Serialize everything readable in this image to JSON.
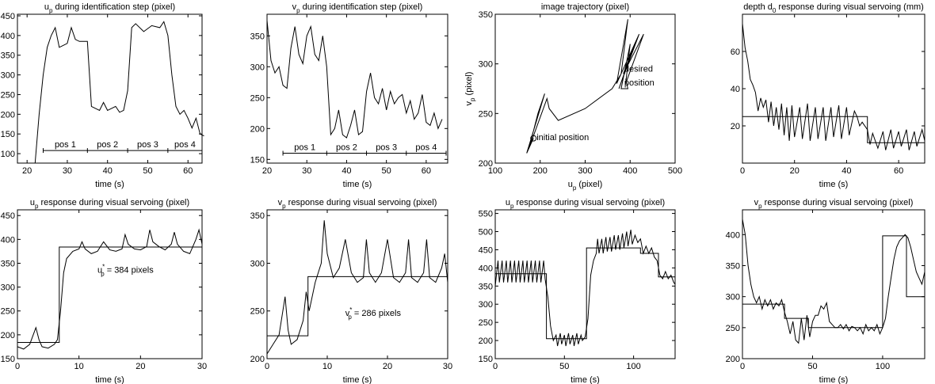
{
  "chart_data": [
    {
      "type": "line",
      "title": [
        "u",
        "p",
        " during identification step (pixel)"
      ],
      "xlabel": "time (s)",
      "xlim": [
        17.6,
        63.5
      ],
      "xticks": [
        20,
        30,
        40,
        50,
        60
      ],
      "ylim": [
        76,
        454
      ],
      "yticks": [
        100,
        150,
        200,
        250,
        300,
        350,
        400,
        450
      ],
      "segment_edges": [
        24,
        35,
        45,
        55,
        65
      ],
      "segment_labels": [
        "pos 1",
        "pos 2",
        "pos 3",
        "pos 4"
      ],
      "series": [
        {
          "color": "#000",
          "x": [
            22,
            23,
            24,
            25,
            26,
            27,
            28,
            29,
            30,
            31,
            32,
            33,
            35,
            36,
            38,
            39,
            40,
            41,
            42,
            43,
            44,
            45,
            46,
            47,
            49,
            51,
            53,
            54,
            55,
            56,
            57,
            58,
            59,
            60,
            61,
            62,
            63,
            64
          ],
          "values": [
            76,
            200,
            300,
            370,
            400,
            420,
            370,
            375,
            380,
            420,
            390,
            385,
            385,
            220,
            210,
            230,
            210,
            215,
            220,
            205,
            210,
            260,
            420,
            430,
            410,
            425,
            420,
            435,
            400,
            300,
            220,
            200,
            210,
            190,
            165,
            190,
            150,
            145
          ]
        }
      ]
    },
    {
      "type": "line",
      "title": [
        "v",
        "p",
        " during identification step (pixel)"
      ],
      "xlabel": "time (s)",
      "xlim": [
        20,
        65.4
      ],
      "xticks": [
        20,
        30,
        40,
        50,
        60
      ],
      "ylim": [
        144,
        385
      ],
      "yticks": [
        150,
        200,
        250,
        300,
        350
      ],
      "segment_edges": [
        24,
        35,
        45,
        55,
        65
      ],
      "segment_labels": [
        "pos 1",
        "pos 2",
        "pos 3",
        "pos 4"
      ],
      "series": [
        {
          "color": "#000",
          "x": [
            20,
            21,
            22,
            23,
            24,
            25,
            26,
            27,
            28,
            29,
            30,
            31,
            32,
            33,
            34,
            35,
            36,
            37,
            38,
            39,
            40,
            41,
            42,
            43,
            44,
            45,
            46,
            47,
            48,
            49,
            50,
            51,
            52,
            53,
            54,
            55,
            56,
            57,
            58,
            59,
            60,
            61,
            62,
            63,
            64
          ],
          "values": [
            375,
            310,
            290,
            300,
            270,
            265,
            330,
            365,
            320,
            305,
            350,
            365,
            320,
            310,
            350,
            300,
            190,
            200,
            230,
            190,
            185,
            205,
            230,
            190,
            195,
            260,
            290,
            250,
            240,
            265,
            230,
            260,
            240,
            250,
            255,
            225,
            245,
            215,
            225,
            255,
            210,
            205,
            225,
            200,
            215
          ]
        }
      ]
    },
    {
      "type": "line",
      "title": [
        "image trajectory (pixel)"
      ],
      "xlabel": [
        "u",
        "p",
        " (pixel)"
      ],
      "ylabel": [
        "v",
        "p",
        " (pixel)"
      ],
      "xlim": [
        100,
        500
      ],
      "xticks": [
        100,
        200,
        300,
        400,
        500
      ],
      "ylim": [
        200,
        350
      ],
      "yticks": [
        200,
        250,
        300,
        350
      ],
      "annotations": [
        "initial position",
        "desired",
        "position"
      ],
      "series": [
        {
          "color": "#000",
          "x": [
            185,
            170,
            200,
            210,
            195,
            175,
            215,
            220,
            240,
            300,
            360,
            380,
            395,
            370,
            420,
            375,
            410,
            385,
            430,
            390,
            400,
            380,
            395,
            390
          ],
          "values": [
            225,
            210,
            255,
            270,
            250,
            215,
            265,
            255,
            243,
            255,
            275,
            290,
            345,
            280,
            330,
            275,
            320,
            290,
            330,
            280,
            320,
            275,
            275,
            285
          ]
        }
      ]
    },
    {
      "type": "line",
      "title": [
        "depth d",
        "0",
        " response during visual servoing (mm)"
      ],
      "xlabel": "time (s)",
      "xlim": [
        0,
        70
      ],
      "xticks": [
        0,
        20,
        40,
        60
      ],
      "ylim": [
        0,
        80
      ],
      "yticks": [
        20,
        40,
        60
      ],
      "series": [
        {
          "color": "#000",
          "x": [
            0,
            1,
            2,
            3,
            4,
            5,
            6,
            7,
            8,
            9,
            10,
            11,
            12,
            13,
            14,
            15,
            16,
            17,
            18,
            19,
            20,
            22,
            23,
            25,
            26,
            28,
            29,
            31,
            32,
            34,
            35,
            37,
            38,
            40,
            41,
            43,
            44,
            45,
            46,
            48,
            49,
            50,
            52,
            54,
            55,
            57,
            58,
            60,
            61,
            63,
            64,
            66,
            67,
            69,
            70
          ],
          "values": [
            75,
            62,
            55,
            45,
            42,
            38,
            28,
            35,
            30,
            34,
            22,
            33,
            20,
            30,
            18,
            32,
            15,
            30,
            12,
            31,
            14,
            30,
            13,
            32,
            12,
            30,
            13,
            30,
            12,
            30,
            14,
            31,
            13,
            30,
            15,
            28,
            25,
            20,
            22,
            18,
            10,
            16,
            8,
            17,
            7,
            18,
            8,
            17,
            9,
            18,
            7,
            17,
            9,
            18,
            12
          ]
        },
        {
          "color": "#000",
          "x": [
            0,
            48,
            48,
            70
          ],
          "values": [
            25,
            25,
            11,
            11
          ]
        }
      ]
    },
    {
      "type": "line",
      "title": [
        "u",
        "p",
        " response during visual servoing (pixel)"
      ],
      "xlabel": "time (s)",
      "xlim": [
        0,
        30
      ],
      "xticks": [
        0,
        10,
        20,
        30
      ],
      "ylim": [
        150,
        462
      ],
      "yticks": [
        150,
        200,
        250,
        300,
        350,
        400,
        450
      ],
      "annotation": [
        "u",
        "*",
        "p",
        " = 384 pixels"
      ],
      "series": [
        {
          "color": "#000",
          "x": [
            0,
            1,
            2,
            3,
            3.5,
            4,
            5,
            6,
            6.5,
            7,
            7.5,
            8,
            9,
            10,
            10.5,
            11,
            12,
            13,
            14,
            15,
            16,
            17,
            17.5,
            18,
            19,
            20,
            21,
            21.5,
            22,
            23,
            24,
            25,
            25.5,
            26,
            27,
            28,
            29,
            29.5,
            30
          ],
          "values": [
            175,
            170,
            180,
            215,
            190,
            175,
            172,
            180,
            190,
            250,
            330,
            360,
            375,
            380,
            395,
            380,
            370,
            375,
            395,
            378,
            375,
            380,
            410,
            390,
            380,
            378,
            385,
            420,
            395,
            385,
            378,
            390,
            415,
            390,
            375,
            370,
            400,
            420,
            390
          ]
        },
        {
          "color": "#000",
          "x": [
            0,
            6.8,
            6.8,
            30
          ],
          "values": [
            184,
            184,
            384,
            384
          ]
        }
      ]
    },
    {
      "type": "line",
      "title": [
        "v",
        "p",
        " response during visual servoing (pixel)"
      ],
      "xlabel": "time (s)",
      "xlim": [
        0,
        30
      ],
      "xticks": [
        0,
        10,
        20,
        30
      ],
      "ylim": [
        200,
        356
      ],
      "yticks": [
        200,
        250,
        300,
        350
      ],
      "annotation": [
        "v",
        "*",
        "p",
        " = 286 pixels"
      ],
      "series": [
        {
          "color": "#000",
          "x": [
            0,
            1,
            2,
            3,
            3.5,
            4,
            5,
            6,
            6.5,
            7,
            8,
            9,
            9.5,
            10,
            11,
            12,
            13,
            14,
            15,
            16,
            16.5,
            17,
            18,
            19,
            20,
            21,
            22,
            23,
            23.5,
            24,
            25,
            26,
            26.5,
            27,
            28,
            29,
            29.5,
            30
          ],
          "values": [
            205,
            215,
            225,
            265,
            230,
            215,
            220,
            240,
            270,
            250,
            280,
            300,
            345,
            310,
            285,
            295,
            325,
            290,
            280,
            285,
            325,
            290,
            280,
            290,
            325,
            285,
            280,
            290,
            325,
            285,
            280,
            290,
            325,
            285,
            280,
            295,
            310,
            280
          ]
        },
        {
          "color": "#000",
          "x": [
            0,
            6.8,
            6.8,
            30
          ],
          "values": [
            224,
            224,
            286,
            286
          ]
        }
      ]
    },
    {
      "type": "line",
      "title": [
        "u",
        "p",
        " response during visual servoing (pixel)"
      ],
      "xlabel": "time (s)",
      "xlim": [
        0,
        130
      ],
      "xticks": [
        0,
        50,
        100
      ],
      "ylim": [
        150,
        560
      ],
      "yticks": [
        150,
        200,
        250,
        300,
        350,
        400,
        450,
        500,
        550
      ],
      "series": [
        {
          "color": "#000",
          "x": [
            0,
            2,
            3,
            5,
            6,
            8,
            9,
            11,
            12,
            14,
            15,
            17,
            18,
            20,
            21,
            23,
            24,
            26,
            27,
            29,
            30,
            32,
            33,
            35,
            36,
            38,
            40,
            42,
            44,
            45,
            47,
            48,
            50,
            51,
            53,
            54,
            56,
            57,
            59,
            60,
            62,
            63,
            65,
            67,
            69,
            71,
            73,
            74,
            75,
            77,
            78,
            80,
            81,
            83,
            84,
            86,
            87,
            89,
            90,
            92,
            93,
            95,
            96,
            98,
            99,
            101,
            103,
            105,
            107,
            109,
            111,
            113,
            115,
            117,
            119,
            121,
            123,
            125,
            127,
            129,
            130
          ],
          "values": [
            350,
            420,
            360,
            420,
            360,
            420,
            360,
            420,
            360,
            420,
            360,
            420,
            360,
            420,
            360,
            420,
            360,
            420,
            360,
            420,
            360,
            420,
            360,
            420,
            370,
            320,
            240,
            200,
            215,
            185,
            220,
            190,
            215,
            185,
            220,
            190,
            215,
            185,
            220,
            190,
            215,
            200,
            210,
            260,
            380,
            420,
            440,
            480,
            440,
            480,
            440,
            485,
            445,
            485,
            445,
            490,
            450,
            490,
            450,
            495,
            455,
            500,
            460,
            505,
            465,
            490,
            470,
            480,
            440,
            460,
            440,
            455,
            430,
            420,
            380,
            370,
            390,
            370,
            380,
            360,
            355
          ]
        },
        {
          "color": "#000",
          "x": [
            0,
            37,
            37,
            66,
            66,
            105,
            105,
            118,
            118,
            130
          ],
          "values": [
            384,
            384,
            205,
            205,
            455,
            455,
            440,
            440,
            375,
            375
          ]
        }
      ]
    },
    {
      "type": "line",
      "title": [
        "v",
        "p",
        " response during visual servoing (pixel)"
      ],
      "xlabel": "time (s)",
      "xlim": [
        0,
        130
      ],
      "xticks": [
        0,
        50,
        100
      ],
      "ylim": [
        200,
        440
      ],
      "yticks": [
        200,
        250,
        300,
        350,
        400
      ],
      "series": [
        {
          "color": "#000",
          "x": [
            0,
            2,
            4,
            6,
            8,
            10,
            12,
            14,
            16,
            18,
            20,
            22,
            24,
            26,
            28,
            30,
            32,
            34,
            36,
            38,
            40,
            42,
            44,
            46,
            48,
            50,
            52,
            54,
            56,
            58,
            60,
            62,
            64,
            66,
            68,
            70,
            72,
            74,
            76,
            78,
            80,
            82,
            84,
            86,
            88,
            90,
            92,
            94,
            96,
            98,
            100,
            102,
            104,
            106,
            108,
            110,
            112,
            114,
            116,
            118,
            120,
            122,
            124,
            126,
            128,
            130
          ],
          "values": [
            425,
            400,
            350,
            320,
            300,
            290,
            300,
            280,
            295,
            285,
            295,
            280,
            290,
            285,
            295,
            275,
            260,
            240,
            260,
            230,
            225,
            265,
            230,
            270,
            235,
            260,
            270,
            270,
            285,
            280,
            290,
            260,
            255,
            250,
            250,
            255,
            248,
            255,
            245,
            252,
            250,
            245,
            250,
            240,
            255,
            245,
            250,
            245,
            255,
            240,
            250,
            265,
            300,
            330,
            360,
            380,
            390,
            395,
            400,
            395,
            380,
            360,
            340,
            330,
            320,
            340
          ]
        },
        {
          "color": "#000",
          "x": [
            0,
            30,
            30,
            47,
            47,
            100,
            100,
            117,
            117,
            130
          ],
          "values": [
            288,
            288,
            265,
            265,
            250,
            250,
            398,
            398,
            300,
            300
          ]
        }
      ]
    }
  ]
}
